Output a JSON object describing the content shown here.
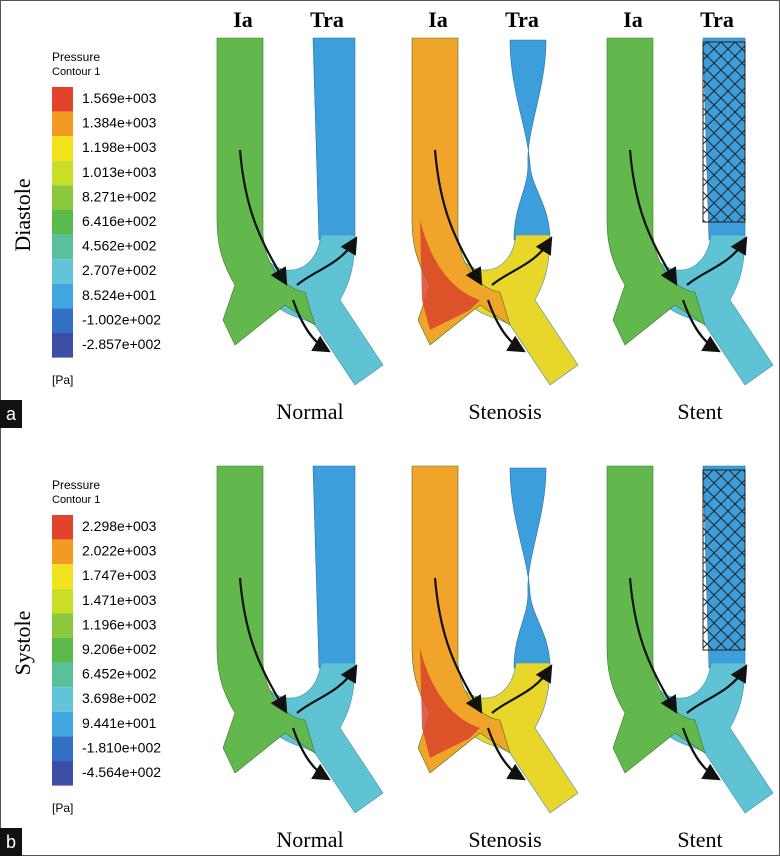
{
  "panels": [
    {
      "letter": "a",
      "row_label": "Diastole",
      "legend": {
        "title": "Pressure",
        "subtitle": "Contour 1",
        "levels": [
          "1.569e+003",
          "1.384e+003",
          "1.198e+003",
          "1.013e+003",
          "8.271e+002",
          "6.416e+002",
          "4.562e+002",
          "2.707e+002",
          "8.524e+001",
          "-1.002e+002",
          "-2.857e+002"
        ],
        "unit": "[Pa]"
      },
      "columns": [
        {
          "vessel_labels": [
            "Ia",
            "Tra"
          ],
          "caption": "Normal"
        },
        {
          "vessel_labels": [
            "Ia",
            "Tra"
          ],
          "caption": "Stenosis"
        },
        {
          "vessel_labels": [
            "Ia",
            "Tra"
          ],
          "caption": "Stent"
        }
      ]
    },
    {
      "letter": "b",
      "row_label": "Systole",
      "legend": {
        "title": "Pressure",
        "subtitle": "Contour 1",
        "levels": [
          "2.298e+003",
          "2.022e+003",
          "1.747e+003",
          "1.471e+003",
          "1.196e+003",
          "9.206e+002",
          "6.452e+002",
          "3.698e+002",
          "9.441e+001",
          "-1.810e+002",
          "-4.564e+002"
        ],
        "unit": "[Pa]"
      },
      "columns": [
        {
          "caption": "Normal"
        },
        {
          "caption": "Stenosis"
        },
        {
          "caption": "Stent"
        }
      ]
    }
  ]
}
